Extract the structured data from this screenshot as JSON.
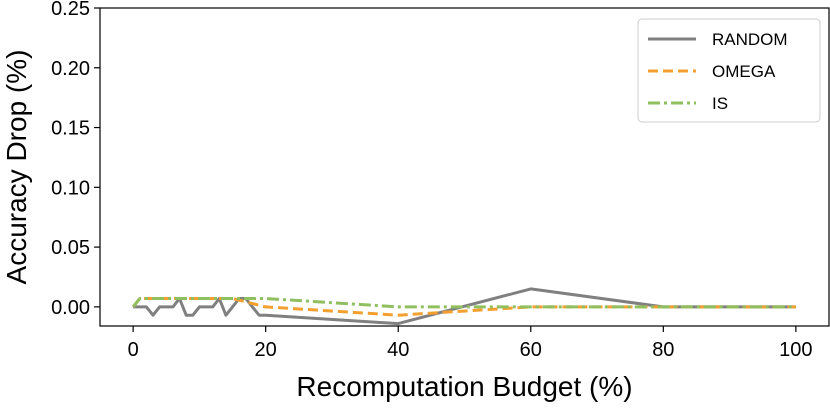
{
  "chart_data": {
    "type": "line",
    "xlabel": "Recomputation Budget (%)",
    "ylabel": "Accuracy Drop (%)",
    "xlim": [
      -5,
      105
    ],
    "ylim": [
      -0.016,
      0.25
    ],
    "xticks": [
      0,
      20,
      40,
      60,
      80,
      100
    ],
    "xtick_labels": [
      "0",
      "20",
      "40",
      "60",
      "80",
      "100"
    ],
    "yticks": [
      0.0,
      0.05,
      0.1,
      0.15,
      0.2,
      0.25
    ],
    "ytick_labels": [
      "0.00",
      "0.05",
      "0.10",
      "0.15",
      "0.20",
      "0.25"
    ],
    "grid": false,
    "legend_position": "top-right",
    "series": [
      {
        "name": "RANDOM",
        "color": "#808080",
        "style": "solid",
        "x": [
          0,
          1,
          2,
          3,
          4,
          5,
          6,
          7,
          8,
          9,
          10,
          11,
          12,
          13,
          14,
          15,
          16,
          17,
          18,
          19,
          20,
          40,
          60,
          80,
          100
        ],
        "y": [
          0.0,
          0.0,
          0.0,
          -0.007,
          0.0,
          0.0,
          0.0,
          0.007,
          -0.007,
          -0.007,
          0.0,
          0.0,
          0.0,
          0.007,
          -0.007,
          0.0,
          0.007,
          0.007,
          0.0,
          -0.007,
          -0.007,
          -0.014,
          0.015,
          0.0,
          0.0
        ]
      },
      {
        "name": "OMEGA",
        "color": "#f4a030",
        "style": "dashed",
        "x": [
          0,
          1,
          2,
          5,
          10,
          15,
          20,
          40,
          60,
          80,
          100
        ],
        "y": [
          0.0,
          0.007,
          0.007,
          0.007,
          0.007,
          0.007,
          0.0,
          -0.007,
          0.0,
          0.0,
          0.0
        ]
      },
      {
        "name": "IS",
        "color": "#8fbf5f",
        "style": "dashdot",
        "x": [
          0,
          1,
          2,
          5,
          10,
          15,
          20,
          40,
          60,
          80,
          100
        ],
        "y": [
          0.0,
          0.007,
          0.007,
          0.007,
          0.007,
          0.007,
          0.007,
          0.0,
          0.0,
          0.0,
          0.0
        ]
      }
    ]
  }
}
